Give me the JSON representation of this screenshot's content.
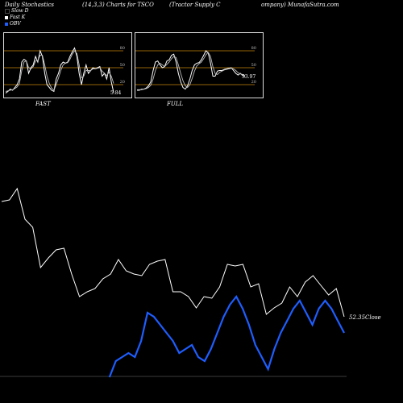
{
  "header": {
    "left": "Daily Stochastics",
    "mid": "(14,3,3) Charts for TSCO",
    "right1": "(Tractor Supply C",
    "right2": "ompany) MunafaSutra.com"
  },
  "legend": [
    {
      "label": "Slow  D",
      "color": "#000000"
    },
    {
      "label": "Fast K",
      "color": "#ffffff"
    },
    {
      "label": "OBV",
      "color": "#1e5eff"
    }
  ],
  "panels": {
    "fast": {
      "label": "FAST",
      "value_label": "5.84",
      "ticks": [
        "80",
        "50",
        "20"
      ]
    },
    "full": {
      "label": "FULL",
      "value_label": "33.97",
      "ticks": [
        "80",
        "50",
        "20"
      ]
    }
  },
  "chart_data": [
    {
      "type": "line",
      "name": "FAST",
      "ylim": [
        0,
        100
      ],
      "levels": [
        80,
        50,
        20
      ],
      "series": [
        {
          "name": "Fast K",
          "color": "#ffffff",
          "values": [
            5,
            8,
            12,
            10,
            15,
            20,
            30,
            60,
            65,
            62,
            40,
            50,
            55,
            70,
            60,
            80,
            70,
            40,
            20,
            15,
            10,
            8,
            30,
            40,
            55,
            60,
            58,
            60,
            70,
            78,
            85,
            70,
            40,
            20,
            40,
            55,
            40,
            45,
            50,
            48,
            50,
            52,
            35,
            40,
            30,
            50,
            25,
            5.84
          ]
        },
        {
          "name": "Slow D",
          "color": "#cccccc",
          "values": [
            8,
            9,
            10,
            11,
            13,
            16,
            22,
            45,
            60,
            62,
            50,
            48,
            52,
            62,
            62,
            72,
            72,
            55,
            35,
            22,
            14,
            10,
            20,
            32,
            45,
            55,
            58,
            59,
            65,
            74,
            80,
            75,
            55,
            32,
            35,
            45,
            45,
            45,
            48,
            48,
            49,
            50,
            44,
            40,
            36,
            42,
            35,
            22
          ]
        }
      ]
    },
    {
      "type": "line",
      "name": "FULL",
      "ylim": [
        0,
        100
      ],
      "levels": [
        80,
        50,
        20
      ],
      "series": [
        {
          "name": "Full K",
          "color": "#ffffff",
          "values": [
            10,
            10,
            12,
            12,
            14,
            18,
            25,
            45,
            60,
            62,
            55,
            50,
            52,
            62,
            64,
            72,
            74,
            60,
            40,
            25,
            15,
            12,
            18,
            30,
            45,
            55,
            58,
            59,
            64,
            72,
            80,
            76,
            58,
            35,
            35,
            44,
            45,
            45,
            47,
            48,
            49,
            50,
            45,
            40,
            37,
            40,
            36,
            33.97
          ]
        },
        {
          "name": "Full D",
          "color": "#cccccc",
          "values": [
            11,
            11,
            11,
            12,
            13,
            15,
            19,
            30,
            45,
            55,
            58,
            55,
            52,
            56,
            60,
            66,
            70,
            68,
            55,
            40,
            27,
            18,
            15,
            20,
            31,
            44,
            53,
            57,
            60,
            66,
            73,
            77,
            70,
            52,
            40,
            38,
            42,
            44,
            46,
            47,
            48,
            49,
            48,
            45,
            41,
            39,
            38,
            36
          ]
        }
      ]
    },
    {
      "type": "line",
      "name": "price",
      "value_label": "52.35",
      "value_suffix": "Close",
      "series": [
        {
          "name": "Close",
          "color": "#ffffff",
          "values": [
            59.5,
            59.6,
            60.3,
            58.4,
            57.9,
            55.4,
            56.0,
            56.5,
            56.6,
            55.0,
            53.6,
            53.9,
            54.1,
            54.7,
            55.0,
            55.9,
            55.2,
            55.0,
            54.9,
            55.6,
            55.8,
            55.9,
            53.9,
            53.9,
            53.6,
            52.9,
            53.6,
            53.5,
            54.2,
            55.6,
            55.5,
            55.6,
            54.2,
            54.4,
            52.5,
            52.9,
            53.2,
            54.2,
            53.6,
            54.5,
            54.9,
            54.3,
            53.7,
            54.1,
            52.35
          ]
        }
      ]
    },
    {
      "type": "line",
      "name": "OBV",
      "series": [
        {
          "name": "OBV",
          "color": "#1e5eff",
          "values": [
            null,
            null,
            null,
            null,
            null,
            null,
            null,
            null,
            null,
            null,
            null,
            null,
            null,
            null,
            null,
            null,
            null,
            -100,
            -60,
            -50,
            -40,
            -50,
            -10,
            60,
            50,
            30,
            10,
            -10,
            -40,
            -30,
            -20,
            -50,
            -60,
            -30,
            10,
            50,
            80,
            100,
            70,
            30,
            -20,
            -50,
            -80,
            -30,
            10,
            40,
            70,
            90,
            60,
            30,
            70,
            90,
            70,
            40,
            10
          ]
        }
      ]
    }
  ]
}
